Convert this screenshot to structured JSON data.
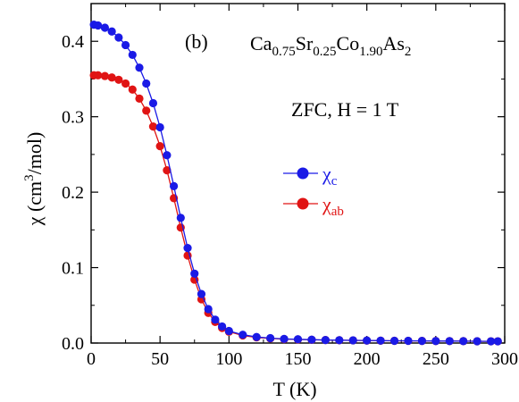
{
  "chart_data": {
    "type": "scatter",
    "panel_label": "(b)",
    "compound": {
      "parts": [
        {
          "text": "Ca",
          "sub": "0.75"
        },
        {
          "text": "Sr",
          "sub": "0.25"
        },
        {
          "text": "Co",
          "sub": "1.90"
        },
        {
          "text": "As",
          "sub": "2"
        }
      ]
    },
    "condition": "ZFC, H = 1 T",
    "xlabel": "T (K)",
    "ylabel": {
      "prefix": "χ (cm",
      "sup": "3",
      "suffix": "/mol)"
    },
    "xlim": [
      0,
      300
    ],
    "ylim": [
      0,
      0.45
    ],
    "xticks": [
      "0",
      "50",
      "100",
      "150",
      "200",
      "250",
      "300"
    ],
    "yticks": [
      "0.0",
      "0.1",
      "0.2",
      "0.3",
      "0.4"
    ],
    "grid": false,
    "legend_position": "center-right",
    "series": [
      {
        "name": {
          "base": "χ",
          "sub": "c"
        },
        "color": "#1a1ae6",
        "x": [
          2,
          5,
          10,
          15,
          20,
          25,
          30,
          35,
          40,
          45,
          50,
          55,
          60,
          65,
          70,
          75,
          80,
          85,
          90,
          95,
          100,
          110,
          120,
          130,
          140,
          150,
          160,
          170,
          180,
          190,
          200,
          210,
          220,
          230,
          240,
          250,
          260,
          270,
          280,
          290,
          295
        ],
        "y": [
          0.422,
          0.421,
          0.418,
          0.413,
          0.405,
          0.395,
          0.382,
          0.365,
          0.344,
          0.318,
          0.286,
          0.249,
          0.208,
          0.166,
          0.126,
          0.092,
          0.065,
          0.045,
          0.031,
          0.022,
          0.016,
          0.011,
          0.008,
          0.0065,
          0.0055,
          0.005,
          0.0045,
          0.004,
          0.0038,
          0.0036,
          0.0034,
          0.0032,
          0.003,
          0.003,
          0.0028,
          0.0027,
          0.0026,
          0.0025,
          0.0024,
          0.0023,
          0.0023
        ]
      },
      {
        "name": {
          "base": "χ",
          "sub": "ab"
        },
        "color": "#e01414",
        "x": [
          2,
          5,
          10,
          15,
          20,
          25,
          30,
          35,
          40,
          45,
          50,
          55,
          60,
          65,
          70,
          75,
          80,
          85,
          90,
          95,
          100,
          110,
          120,
          130,
          140,
          150,
          160,
          170,
          180,
          190,
          200,
          210,
          220,
          230,
          240,
          250,
          260,
          270,
          280,
          290,
          295
        ],
        "y": [
          0.355,
          0.355,
          0.354,
          0.352,
          0.349,
          0.344,
          0.336,
          0.324,
          0.308,
          0.287,
          0.261,
          0.229,
          0.192,
          0.153,
          0.116,
          0.084,
          0.058,
          0.04,
          0.028,
          0.02,
          0.015,
          0.01,
          0.0075,
          0.006,
          0.0052,
          0.0047,
          0.0043,
          0.004,
          0.0037,
          0.0035,
          0.0033,
          0.0031,
          0.003,
          0.0029,
          0.0028,
          0.0027,
          0.0026,
          0.0025,
          0.0024,
          0.0023,
          0.0023
        ]
      }
    ]
  }
}
